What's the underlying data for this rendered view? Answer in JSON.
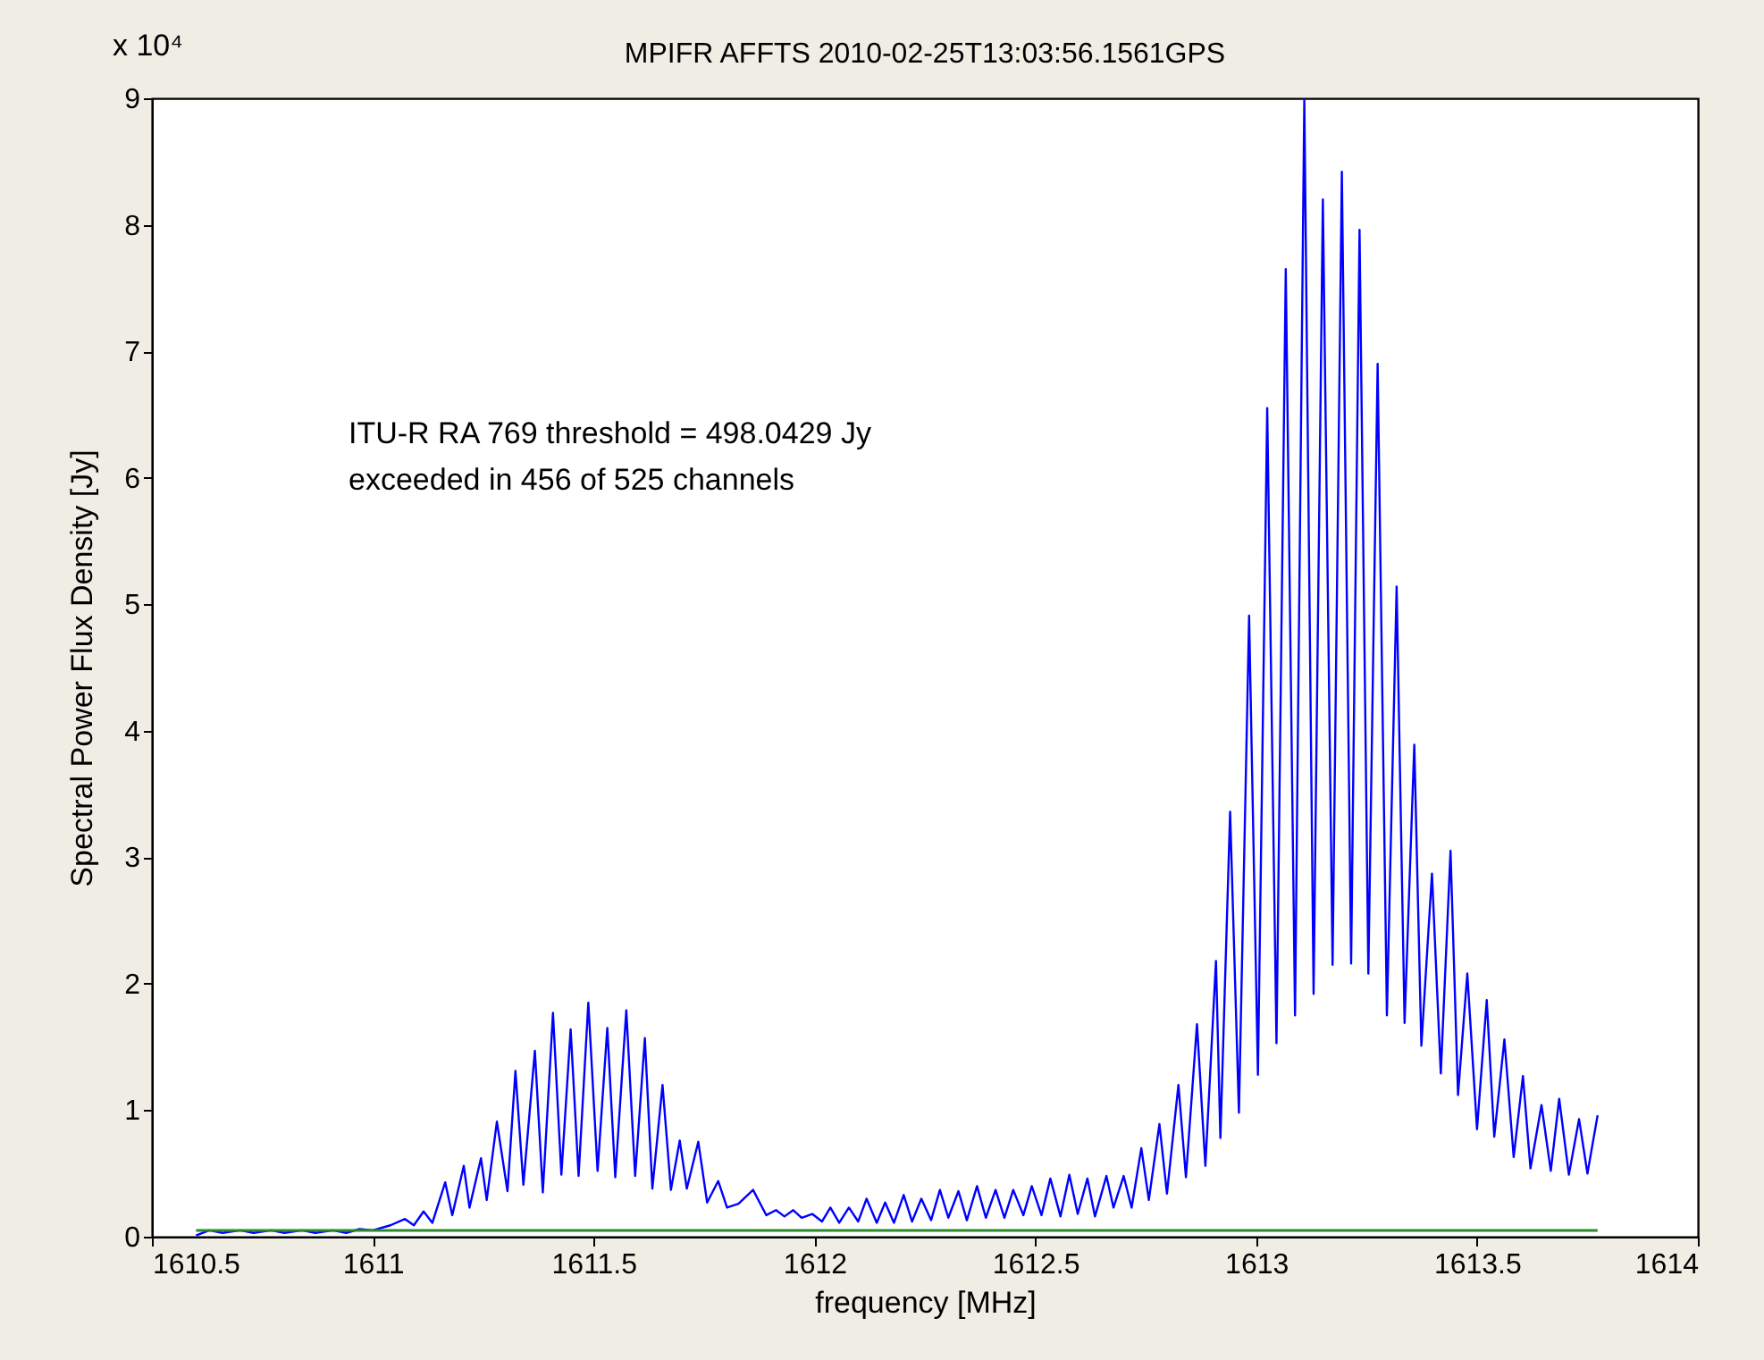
{
  "chart_data": {
    "type": "line",
    "title": "MPIFR AFFTS 2010-02-25T13:03:56.1561GPS",
    "xlabel": "frequency [MHz]",
    "ylabel": "Spectral Power Flux Density  [Jy]",
    "annotations": [
      "x 10⁴",
      "ITU-R RA 769 threshold = 498.0429 Jy",
      "exceeded in 456 of 525 channels"
    ],
    "series": [
      {
        "color": "#0000ff",
        "x": [
          1610.6,
          1610.63,
          1610.66,
          1610.7,
          1610.73,
          1610.77,
          1610.8,
          1610.84,
          1610.87,
          1610.91,
          1610.94,
          1610.97,
          1611.0,
          1611.04,
          1611.073,
          1611.093,
          1611.115,
          1611.135,
          1611.164,
          1611.18,
          1611.206,
          1611.219,
          1611.245,
          1611.258,
          1611.281,
          1611.305,
          1611.323,
          1611.341,
          1611.367,
          1611.385,
          1611.408,
          1611.427,
          1611.448,
          1611.466,
          1611.488,
          1611.509,
          1611.531,
          1611.549,
          1611.574,
          1611.594,
          1611.616,
          1611.633,
          1611.656,
          1611.675,
          1611.695,
          1611.711,
          1611.737,
          1611.757,
          1611.782,
          1611.802,
          1611.828,
          1611.861,
          1611.891,
          1611.913,
          1611.932,
          1611.952,
          1611.971,
          1611.995,
          1612.017,
          1612.036,
          1612.056,
          1612.078,
          1612.099,
          1612.118,
          1612.141,
          1612.16,
          1612.18,
          1612.202,
          1612.221,
          1612.242,
          1612.264,
          1612.284,
          1612.303,
          1612.326,
          1612.345,
          1612.368,
          1612.388,
          1612.41,
          1612.43,
          1612.45,
          1612.473,
          1612.492,
          1612.514,
          1612.534,
          1612.557,
          1612.577,
          1612.596,
          1612.618,
          1612.635,
          1612.661,
          1612.677,
          1612.7,
          1612.718,
          1612.74,
          1612.757,
          1612.781,
          1612.798,
          1612.824,
          1612.841,
          1612.866,
          1612.885,
          1612.909,
          1612.919,
          1612.941,
          1612.961,
          1612.984,
          1613.004,
          1613.025,
          1613.046,
          1613.067,
          1613.088,
          1613.109,
          1613.13,
          1613.151,
          1613.173,
          1613.194,
          1613.215,
          1613.234,
          1613.254,
          1613.275,
          1613.296,
          1613.318,
          1613.336,
          1613.358,
          1613.374,
          1613.398,
          1613.418,
          1613.44,
          1613.457,
          1613.478,
          1613.5,
          1613.522,
          1613.539,
          1613.562,
          1613.583,
          1613.604,
          1613.621,
          1613.646,
          1613.667,
          1613.686,
          1613.708,
          1613.731,
          1613.75,
          1613.773
        ],
        "values": [
          0.01,
          0.05,
          0.03,
          0.05,
          0.03,
          0.05,
          0.03,
          0.05,
          0.03,
          0.05,
          0.03,
          0.06,
          0.05,
          0.09,
          0.14,
          0.09,
          0.2,
          0.11,
          0.43,
          0.17,
          0.56,
          0.23,
          0.62,
          0.29,
          0.91,
          0.36,
          1.31,
          0.41,
          1.47,
          0.35,
          1.77,
          0.49,
          1.64,
          0.48,
          1.85,
          0.52,
          1.65,
          0.47,
          1.79,
          0.48,
          1.57,
          0.38,
          1.2,
          0.37,
          0.76,
          0.38,
          0.75,
          0.27,
          0.44,
          0.23,
          0.26,
          0.37,
          0.17,
          0.21,
          0.16,
          0.21,
          0.15,
          0.18,
          0.12,
          0.23,
          0.11,
          0.23,
          0.12,
          0.3,
          0.11,
          0.27,
          0.11,
          0.33,
          0.12,
          0.3,
          0.13,
          0.37,
          0.15,
          0.36,
          0.13,
          0.4,
          0.15,
          0.37,
          0.15,
          0.37,
          0.17,
          0.4,
          0.17,
          0.46,
          0.16,
          0.49,
          0.18,
          0.46,
          0.16,
          0.48,
          0.23,
          0.48,
          0.23,
          0.7,
          0.29,
          0.89,
          0.34,
          1.2,
          0.47,
          1.68,
          0.56,
          2.18,
          0.78,
          3.36,
          0.98,
          4.91,
          1.28,
          6.55,
          1.53,
          7.65,
          1.75,
          8.99,
          1.92,
          8.2,
          2.15,
          8.42,
          2.16,
          7.96,
          2.08,
          6.9,
          1.75,
          5.14,
          1.69,
          3.89,
          1.51,
          2.87,
          1.29,
          3.05,
          1.12,
          2.08,
          0.85,
          1.87,
          0.79,
          1.56,
          0.63,
          1.27,
          0.54,
          1.04,
          0.52,
          1.09,
          0.49,
          0.93,
          0.5,
          0.96
        ]
      }
    ],
    "ref_lines": [
      {
        "axis": "y",
        "value": 0.04980429,
        "color": "#2a8a2a",
        "line_style": "solid"
      }
    ],
    "xlim": [
      1610.5,
      1614
    ],
    "xticks": [
      1610.5,
      1611,
      1611.5,
      1612,
      1612.5,
      1613,
      1613.5,
      1614
    ],
    "ylim": [
      0,
      9
    ],
    "yticks": [
      0,
      1,
      2,
      3,
      4,
      5,
      6,
      7,
      8,
      9
    ],
    "grid": false,
    "marker": "none",
    "line_style": "solid"
  }
}
